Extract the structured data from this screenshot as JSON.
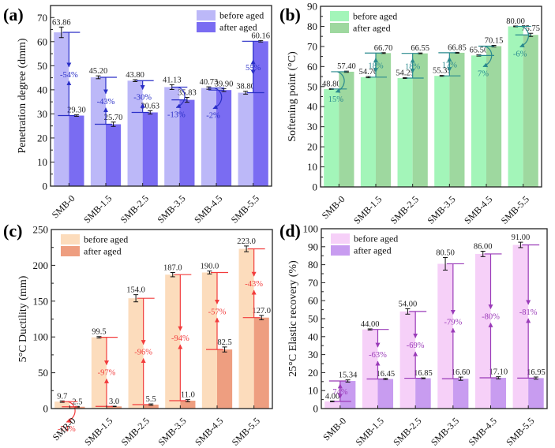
{
  "figure": {
    "type": "multi-panel grouped bar chart"
  },
  "chart_data": [
    {
      "id": "a",
      "panel_label": "(a)",
      "type": "bar",
      "title": "",
      "xlabel": "",
      "ylabel": "Penetration degree (dmm)",
      "ylim": [
        0,
        75
      ],
      "yticks": [
        0,
        10,
        20,
        30,
        40,
        50,
        60,
        70
      ],
      "grid": false,
      "legend_position": "top-right",
      "categories": [
        "SMB-0",
        "SMB-1.5",
        "SMB-2.5",
        "SMB-3.5",
        "SMB-4.5",
        "SMB-5.5"
      ],
      "series": [
        {
          "name": "before aged",
          "color": "#bcb8f8",
          "values": [
            63.86,
            45.2,
            43.8,
            41.13,
            40.73,
            38.8
          ],
          "errors": [
            2.2,
            0.6,
            0.4,
            1.0,
            0.5,
            0.6
          ],
          "labels": [
            "63.86",
            "45.20",
            "43.80",
            "41.13",
            "40.73",
            "38.80"
          ]
        },
        {
          "name": "after aged",
          "color": "#7a6cf2",
          "values": [
            29.3,
            25.7,
            30.63,
            35.83,
            39.9,
            60.16
          ],
          "errors": [
            0.3,
            0.9,
            0.7,
            1.0,
            0.6,
            0.3
          ],
          "labels": [
            "29.30",
            "25.70",
            "30.63",
            "35.83",
            "39.90",
            "60.16"
          ]
        }
      ],
      "annotation_color": "#2a2fc7",
      "changes": [
        "-54%",
        "-43%",
        "-30%",
        "-13%",
        "-2%",
        "55%"
      ]
    },
    {
      "id": "b",
      "panel_label": "(b)",
      "type": "bar",
      "title": "",
      "xlabel": "",
      "ylabel": "Softening point (°C)",
      "ylim": [
        0,
        90
      ],
      "yticks": [
        0,
        10,
        20,
        30,
        40,
        50,
        60,
        70,
        80,
        90
      ],
      "grid": false,
      "legend_position": "top-left",
      "categories": [
        "SMB-0",
        "SMB-1.5",
        "SMB-2.5",
        "SMB-3.5",
        "SMB-4.5",
        "SMB-5.5"
      ],
      "series": [
        {
          "name": "before aged",
          "color": "#a3f5b9",
          "values": [
            48.8,
            54.7,
            54.25,
            55.35,
            65.5,
            80.0
          ],
          "errors": [
            0.2,
            0.3,
            0.2,
            0.2,
            0.3,
            0.2
          ],
          "labels": [
            "48.80",
            "54.70",
            "54.25",
            "55.35",
            "65.50",
            "80.00"
          ]
        },
        {
          "name": "after aged",
          "color": "#9ed89f",
          "values": [
            57.4,
            66.7,
            66.55,
            66.85,
            70.15,
            75.75
          ],
          "errors": [
            0.3,
            0.2,
            0.2,
            0.2,
            0.4,
            0.8
          ],
          "labels": [
            "57.40",
            "66.70",
            "66.55",
            "66.85",
            "70.15",
            "75.75"
          ]
        }
      ],
      "annotation_color": "#2a8a8e",
      "changes": [
        "15%",
        "18%",
        "18%",
        "17%",
        "7%",
        "-6%"
      ]
    },
    {
      "id": "c",
      "panel_label": "(c)",
      "type": "bar",
      "title": "",
      "xlabel": "",
      "ylabel": "5°C Ductility (mm)",
      "ylim": [
        0,
        250
      ],
      "yticks": [
        0,
        50,
        100,
        150,
        200,
        250
      ],
      "grid": false,
      "legend_position": "top-left",
      "categories": [
        "SMB-0",
        "SMB-1.5",
        "SMB-2.5",
        "SMB-3.5",
        "SMB-4.5",
        "SMB-5.5"
      ],
      "series": [
        {
          "name": "before aged",
          "color": "#fcdcbc",
          "values": [
            9.7,
            99.5,
            154.0,
            187.0,
            190.0,
            223.0
          ],
          "errors": [
            1.0,
            1.0,
            5.0,
            3.0,
            2.0,
            4.0
          ],
          "labels": [
            "9.7",
            "99.5",
            "154.0",
            "187.0",
            "190.0",
            "223.0"
          ]
        },
        {
          "name": "after aged",
          "color": "#ee9e80",
          "values": [
            2.5,
            3.0,
            5.5,
            11.0,
            82.5,
            127.0
          ],
          "errors": [
            0.5,
            0.3,
            1.0,
            1.5,
            3.5,
            3.0
          ],
          "labels": [
            "2.5",
            "3.0",
            "5.5",
            "11.0",
            "82.5",
            "127.0"
          ]
        }
      ],
      "annotation_color": "#f23c3c",
      "changes": [
        "-74%",
        "-97%",
        "-96%",
        "-94%",
        "-57%",
        "-43%"
      ]
    },
    {
      "id": "d",
      "panel_label": "(d)",
      "type": "bar",
      "title": "",
      "xlabel": "",
      "ylabel": "25°C Elastic recovery (%)",
      "ylim": [
        0,
        100
      ],
      "yticks": [
        0,
        10,
        20,
        30,
        40,
        50,
        60,
        70,
        80,
        90,
        100
      ],
      "grid": false,
      "legend_position": "top-left",
      "categories": [
        "SMB-0",
        "SMB-1.5",
        "SMB-2.5",
        "SMB-3.5",
        "SMB-4.5",
        "SMB-5.5"
      ],
      "series": [
        {
          "name": "before aged",
          "color": "#f6d0f8",
          "values": [
            4.0,
            44.0,
            54.0,
            80.5,
            86.0,
            91.0
          ],
          "errors": [
            0.2,
            0.3,
            1.5,
            3.5,
            1.5,
            1.5
          ],
          "labels": [
            "4.00",
            "44.00",
            "54.00",
            "80.50",
            "86.00",
            "91.00"
          ]
        },
        {
          "name": "after aged",
          "color": "#c89cf0",
          "values": [
            15.34,
            16.45,
            16.85,
            16.6,
            17.1,
            16.95
          ],
          "errors": [
            0.6,
            0.3,
            0.2,
            0.9,
            0.6,
            0.6
          ],
          "labels": [
            "15.34",
            "16.45",
            "16.85",
            "16.60",
            "17.10",
            "16.95"
          ]
        }
      ],
      "annotation_color": "#9a3bb8",
      "changes": [
        "74%",
        "-63%",
        "-69%",
        "-79%",
        "-80%",
        "-81%"
      ]
    }
  ]
}
